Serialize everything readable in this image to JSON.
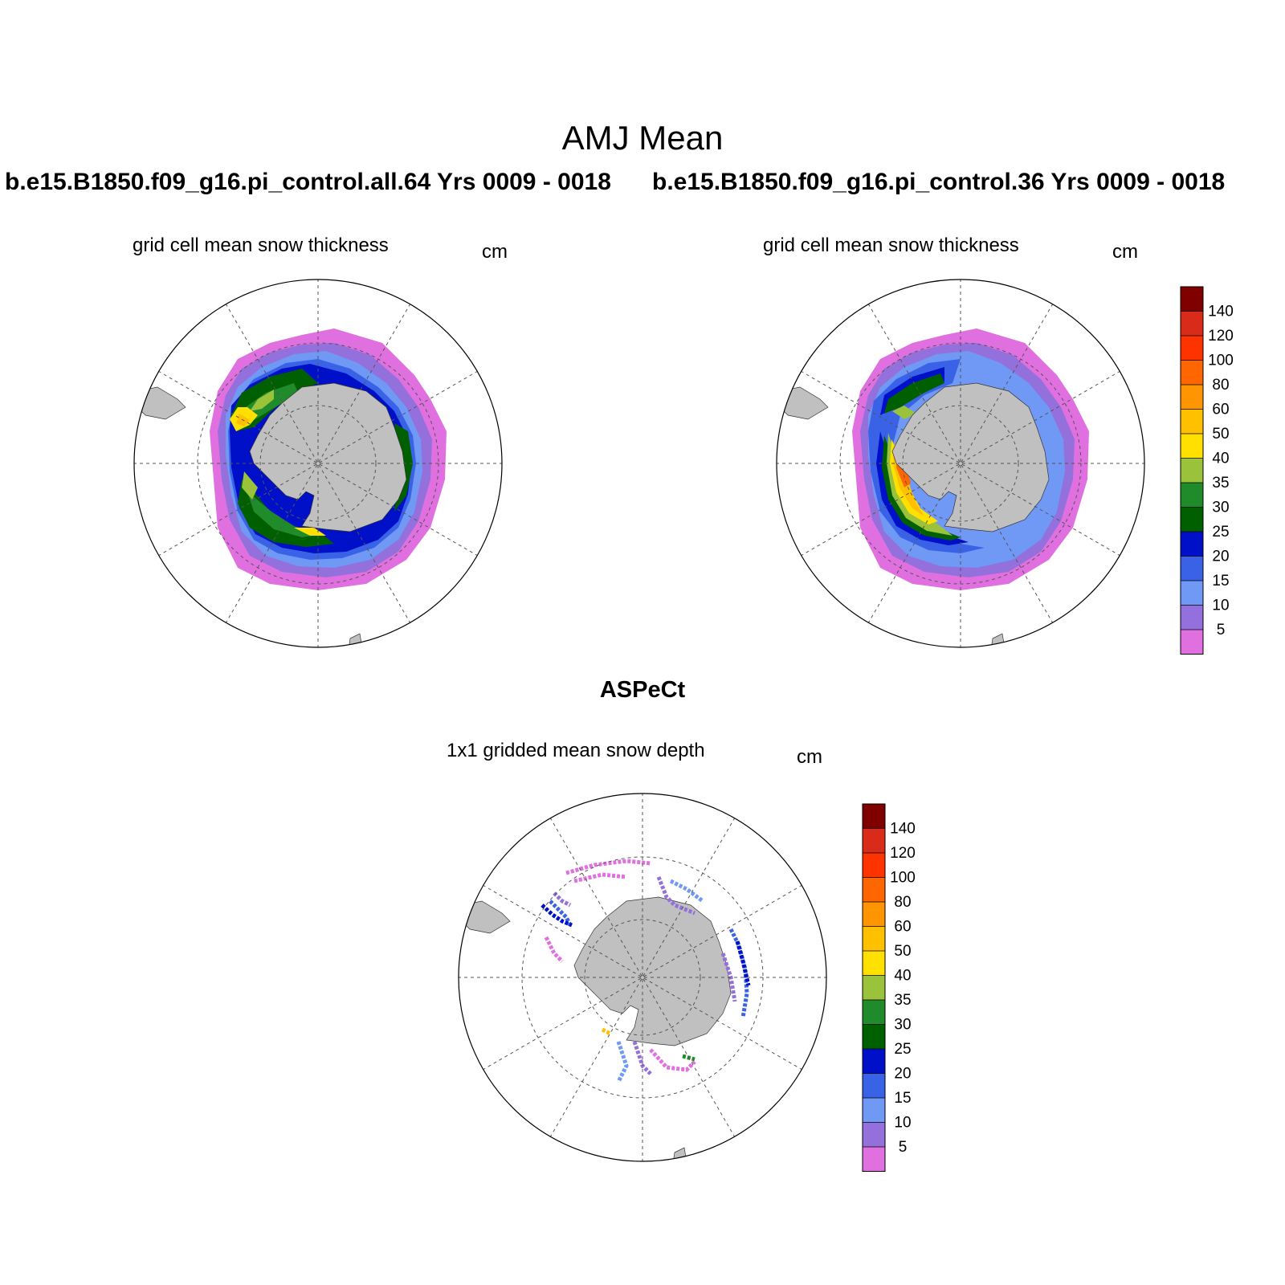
{
  "main_title": "AMJ Mean",
  "case_left": "b.e15.B1850.f09_g16.pi_control.all.64  Yrs 0009 - 0018",
  "case_right": "b.e15.B1850.f09_g16.pi_control.36  Yrs 0009 - 0018",
  "panel_left": {
    "title": "grid cell mean snow thickness",
    "unit": "cm"
  },
  "panel_right": {
    "title": "grid cell mean snow thickness",
    "unit": "cm"
  },
  "obs_header": "ASPeCt",
  "panel_obs": {
    "title": "1x1 gridded mean snow depth",
    "unit": "cm"
  },
  "colorbar": {
    "labels": [
      "140",
      "120",
      "100",
      "80",
      "60",
      "50",
      "40",
      "35",
      "30",
      "25",
      "20",
      "15",
      "10",
      "5"
    ],
    "colors": [
      "#800000",
      "#D92B1A",
      "#FF3300",
      "#FF6600",
      "#FF9500",
      "#FFC000",
      "#FFE000",
      "#9AC23B",
      "#208B2A",
      "#006000",
      "#0010C8",
      "#3A62E6",
      "#7098F5",
      "#9370DB",
      "#E070E0"
    ]
  },
  "colors": {
    "land": "#C0C0C0",
    "grid": "#555555"
  }
}
